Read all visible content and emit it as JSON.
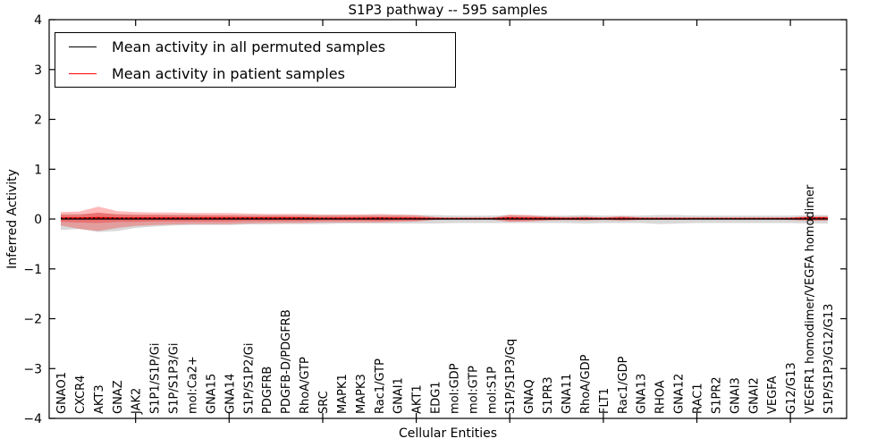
{
  "title": "S1P3 pathway -- 595 samples",
  "axes": {
    "xlabel": "Cellular Entities",
    "ylabel": "Inferred Activity"
  },
  "legend": {
    "items": [
      {
        "label": "Mean activity in all permuted samples",
        "color": "#000000"
      },
      {
        "label": "Mean activity in patient samples",
        "color": "#ff0000"
      }
    ]
  },
  "chart_data": {
    "type": "line",
    "title": "S1P3 pathway -- 595 samples",
    "xlabel": "Cellular Entities",
    "ylabel": "Inferred Activity",
    "ylim": [
      -4,
      4
    ],
    "yticks": [
      -4,
      -3,
      -2,
      -1,
      0,
      1,
      2,
      3,
      4
    ],
    "grid": false,
    "legend_position": "upper left",
    "categories": [
      "GNAO1",
      "CXCR4",
      "AKT3",
      "GNAZ",
      "JAK2",
      "S1P1/S1P/Gi",
      "S1P/S1P3/Gi",
      "mol:Ca2+",
      "GNA15",
      "GNA14",
      "S1P/S1P2/Gi",
      "PDGFRB",
      "PDGFB-D/PDGFRB",
      "RhoA/GTP",
      "SRC",
      "MAPK1",
      "MAPK3",
      "Rac1/GTP",
      "GNAI1",
      "AKT1",
      "EDG1",
      "mol:GDP",
      "mol:GTP",
      "mol:S1P",
      "S1P/S1P3/Gq",
      "GNAQ",
      "S1PR3",
      "GNA11",
      "RhoA/GDP",
      "FLT1",
      "Rac1/GDP",
      "GNA13",
      "RHOA",
      "GNA12",
      "RAC1",
      "S1PR2",
      "GNAI3",
      "GNAI2",
      "VEGFA",
      "G12/G13",
      "VEGFR1 homodimer/VEGFA homodimer",
      "S1P/S1P3/G12/G13"
    ],
    "series": [
      {
        "name": "Mean activity in all permuted samples",
        "color": "#000000",
        "values": [
          0,
          0,
          0,
          0,
          0,
          0,
          0,
          0,
          0,
          0,
          0,
          0,
          0,
          0,
          0,
          0,
          0,
          0,
          0,
          0,
          0,
          0,
          0,
          0,
          0,
          0,
          0,
          0,
          0,
          0,
          0,
          0,
          0,
          0,
          0,
          0,
          0,
          0,
          0,
          0,
          0,
          0
        ],
        "band_color": "#999999",
        "band_upper": [
          0.1,
          0.1,
          0.12,
          0.1,
          0.09,
          0.09,
          0.09,
          0.09,
          0.08,
          0.08,
          0.08,
          0.08,
          0.08,
          0.08,
          0.08,
          0.08,
          0.08,
          0.08,
          0.08,
          0.08,
          0.08,
          0.07,
          0.07,
          0.07,
          0.08,
          0.07,
          0.07,
          0.07,
          0.08,
          0.07,
          0.07,
          0.07,
          0.08,
          0.08,
          0.07,
          0.07,
          0.07,
          0.07,
          0.07,
          0.07,
          0.08,
          0.08
        ],
        "band_lower": [
          -0.22,
          -0.2,
          -0.26,
          -0.24,
          -0.18,
          -0.15,
          -0.13,
          -0.12,
          -0.12,
          -0.12,
          -0.11,
          -0.11,
          -0.1,
          -0.1,
          -0.1,
          -0.09,
          -0.09,
          -0.09,
          -0.09,
          -0.09,
          -0.09,
          -0.08,
          -0.08,
          -0.08,
          -0.08,
          -0.08,
          -0.08,
          -0.08,
          -0.09,
          -0.08,
          -0.08,
          -0.08,
          -0.1,
          -0.09,
          -0.08,
          -0.08,
          -0.08,
          -0.08,
          -0.08,
          -0.08,
          -0.09,
          -0.09
        ]
      },
      {
        "name": "Mean activity in patient samples",
        "color": "#ff0000",
        "values": [
          0.02,
          0.02,
          0.025,
          0.02,
          0.02,
          0.02,
          0.02,
          0.02,
          0.02,
          0.02,
          0.02,
          0.02,
          0.02,
          0.02,
          0.015,
          0.015,
          0.015,
          0.02,
          0.015,
          0.015,
          0.01,
          0.01,
          0.01,
          0.01,
          0.02,
          0.015,
          0.015,
          0.01,
          0.015,
          0.01,
          0.015,
          0.01,
          0.01,
          0.01,
          0.01,
          0.01,
          0.01,
          0.01,
          0.01,
          0.01,
          0.02,
          0.02
        ],
        "band_color": "#ff0000",
        "band_outer_upper": [
          0.14,
          0.15,
          0.25,
          0.16,
          0.14,
          0.13,
          0.13,
          0.12,
          0.12,
          0.12,
          0.11,
          0.1,
          0.1,
          0.1,
          0.09,
          0.09,
          0.09,
          0.1,
          0.09,
          0.08,
          0.04,
          0.015,
          0.015,
          0.02,
          0.09,
          0.08,
          0.05,
          0.04,
          0.05,
          0.03,
          0.06,
          0.03,
          0.025,
          0.025,
          0.02,
          0.02,
          0.02,
          0.02,
          0.02,
          0.03,
          0.06,
          0.055
        ],
        "band_outer_lower": [
          -0.13,
          -0.2,
          -0.24,
          -0.18,
          -0.14,
          -0.12,
          -0.11,
          -0.1,
          -0.1,
          -0.1,
          -0.09,
          -0.08,
          -0.08,
          -0.08,
          -0.07,
          -0.07,
          -0.07,
          -0.07,
          -0.06,
          -0.05,
          -0.02,
          -0.01,
          -0.01,
          -0.01,
          -0.06,
          -0.05,
          -0.03,
          -0.025,
          -0.03,
          -0.02,
          -0.035,
          -0.02,
          -0.018,
          -0.018,
          -0.015,
          -0.015,
          -0.015,
          -0.015,
          -0.015,
          -0.02,
          -0.04,
          -0.035
        ],
        "band_inner_upper": [
          0.08,
          0.08,
          0.13,
          0.09,
          0.08,
          0.08,
          0.07,
          0.07,
          0.07,
          0.07,
          0.06,
          0.06,
          0.06,
          0.05,
          0.05,
          0.05,
          0.05,
          0.05,
          0.05,
          0.04,
          0.02,
          0.01,
          0.01,
          0.01,
          0.05,
          0.04,
          0.03,
          0.02,
          0.03,
          0.015,
          0.03,
          0.015,
          0.012,
          0.012,
          0.01,
          0.01,
          0.01,
          0.01,
          0.01,
          0.015,
          0.035,
          0.03
        ],
        "band_inner_lower": [
          -0.06,
          -0.07,
          -0.08,
          -0.06,
          -0.06,
          -0.05,
          -0.05,
          -0.05,
          -0.05,
          -0.05,
          -0.04,
          -0.04,
          -0.04,
          -0.04,
          -0.03,
          -0.03,
          -0.03,
          -0.04,
          -0.03,
          -0.03,
          -0.01,
          -0.005,
          -0.005,
          -0.005,
          -0.03,
          -0.03,
          -0.02,
          -0.015,
          -0.02,
          -0.01,
          -0.02,
          -0.01,
          -0.01,
          -0.01,
          -0.008,
          -0.008,
          -0.008,
          -0.008,
          -0.008,
          -0.01,
          -0.02,
          -0.02
        ]
      }
    ]
  }
}
